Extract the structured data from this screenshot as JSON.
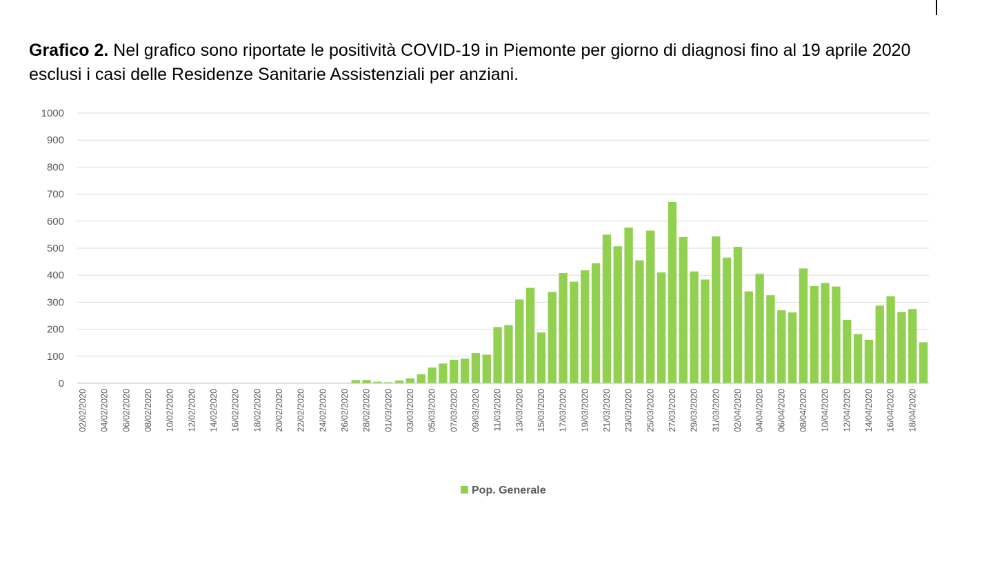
{
  "caption": {
    "lead": "Grafico 2.",
    "text": "Nel grafico sono riportate le positività COVID-19 in Piemonte per giorno di diagnosi fino al 19 aprile 2020 esclusi i casi delle Residenze Sanitarie Assistenziali per anziani."
  },
  "colors": {
    "bar": "#92d050",
    "grid": "#d9d9d9",
    "axis": "#bfbfbf",
    "text": "#595959"
  },
  "chart_data": {
    "type": "bar",
    "ylim": [
      0,
      1000
    ],
    "yticks": [
      0,
      100,
      200,
      300,
      400,
      500,
      600,
      700,
      800,
      900,
      1000
    ],
    "grid": true,
    "legend_position": "bottom",
    "series": [
      {
        "name": "Pop. Generale",
        "values": [
          0,
          0,
          0,
          0,
          0,
          0,
          0,
          0,
          0,
          0,
          0,
          0,
          0,
          0,
          0,
          0,
          0,
          0,
          0,
          0,
          0,
          0,
          0,
          0,
          0,
          12,
          12,
          6,
          4,
          10,
          18,
          33,
          58,
          73,
          87,
          91,
          112,
          106,
          208,
          215,
          310,
          353,
          188,
          338,
          408,
          376,
          418,
          444,
          550,
          507,
          576,
          455,
          565,
          410,
          671,
          541,
          414,
          384,
          544,
          465,
          505,
          340,
          405,
          326,
          270,
          262,
          425,
          360,
          371,
          358,
          235,
          182,
          161,
          287,
          322,
          263,
          275,
          152
        ]
      }
    ],
    "categories": [
      "02/02/2020",
      "03/02/2020",
      "04/02/2020",
      "05/02/2020",
      "06/02/2020",
      "07/02/2020",
      "08/02/2020",
      "09/02/2020",
      "10/02/2020",
      "11/02/2020",
      "12/02/2020",
      "13/02/2020",
      "14/02/2020",
      "15/02/2020",
      "16/02/2020",
      "17/02/2020",
      "18/02/2020",
      "19/02/2020",
      "20/02/2020",
      "21/02/2020",
      "22/02/2020",
      "23/02/2020",
      "24/02/2020",
      "25/02/2020",
      "26/02/2020",
      "27/02/2020",
      "28/02/2020",
      "29/02/2020",
      "01/03/2020",
      "02/03/2020",
      "03/03/2020",
      "04/03/2020",
      "05/03/2020",
      "06/03/2020",
      "07/03/2020",
      "08/03/2020",
      "09/03/2020",
      "10/03/2020",
      "11/03/2020",
      "12/03/2020",
      "13/03/2020",
      "14/03/2020",
      "15/03/2020",
      "16/03/2020",
      "17/03/2020",
      "18/03/2020",
      "19/03/2020",
      "20/03/2020",
      "21/03/2020",
      "22/03/2020",
      "23/03/2020",
      "24/03/2020",
      "25/03/2020",
      "26/03/2020",
      "27/03/2020",
      "28/03/2020",
      "29/03/2020",
      "30/03/2020",
      "31/03/2020",
      "01/04/2020",
      "02/04/2020",
      "03/04/2020",
      "04/04/2020",
      "05/04/2020",
      "06/04/2020",
      "07/04/2020",
      "08/04/2020",
      "09/04/2020",
      "10/04/2020",
      "11/04/2020",
      "12/04/2020",
      "13/04/2020",
      "14/04/2020",
      "15/04/2020",
      "16/04/2020",
      "17/04/2020",
      "18/04/2020",
      "19/04/2020"
    ],
    "x_tick_labels": [
      "02/02/2020",
      "04/02/2020",
      "06/02/2020",
      "08/02/2020",
      "10/02/2020",
      "12/02/2020",
      "14/02/2020",
      "16/02/2020",
      "18/02/2020",
      "20/02/2020",
      "22/02/2020",
      "24/02/2020",
      "26/02/2020",
      "28/02/2020",
      "01/03/2020",
      "03/03/2020",
      "05/03/2020",
      "07/03/2020",
      "09/03/2020",
      "11/03/2020",
      "13/03/2020",
      "15/03/2020",
      "17/03/2020",
      "19/03/2020",
      "21/03/2020",
      "23/03/2020",
      "25/03/2020",
      "27/03/2020",
      "29/03/2020",
      "31/03/2020",
      "02/04/2020",
      "04/04/2020",
      "06/04/2020",
      "08/04/2020",
      "10/04/2020",
      "12/04/2020",
      "14/04/2020",
      "16/04/2020",
      "18/04/2020"
    ]
  }
}
